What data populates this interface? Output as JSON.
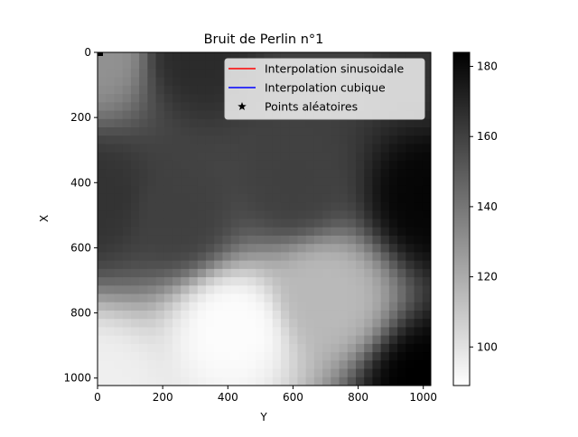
{
  "chart_data": {
    "type": "heatmap",
    "title": "Bruit de Perlin n°1",
    "xlabel": "Y",
    "ylabel": "X",
    "x_ticks": [
      0,
      200,
      400,
      600,
      800,
      1000
    ],
    "y_ticks": [
      0,
      200,
      400,
      600,
      800,
      1000
    ],
    "xlim": [
      0,
      1023
    ],
    "ylim": [
      1023,
      0
    ],
    "colormap": "gray_r",
    "colorbar": {
      "range": [
        89,
        184
      ],
      "ticks": [
        100,
        120,
        140,
        160,
        180
      ]
    },
    "approx_values": [
      {
        "x": 0,
        "y": 0,
        "value": 130
      },
      {
        "x": 300,
        "y": 0,
        "value": 168
      },
      {
        "x": 700,
        "y": 0,
        "value": 160
      },
      {
        "x": 1023,
        "y": 0,
        "value": 165
      },
      {
        "x": 0,
        "y": 450,
        "value": 165
      },
      {
        "x": 250,
        "y": 500,
        "value": 160
      },
      {
        "x": 600,
        "y": 400,
        "value": 160
      },
      {
        "x": 1023,
        "y": 450,
        "value": 182
      },
      {
        "x": 0,
        "y": 1023,
        "value": 95
      },
      {
        "x": 420,
        "y": 850,
        "value": 90
      },
      {
        "x": 700,
        "y": 750,
        "value": 115
      },
      {
        "x": 1023,
        "y": 1023,
        "value": 184
      }
    ],
    "legend": {
      "position": "upper right",
      "entries": [
        {
          "label": "Interpolation sinusoidale",
          "color": "#ff0000",
          "marker": "line"
        },
        {
          "label": "Interpolation cubique",
          "color": "#0000ff",
          "marker": "line"
        },
        {
          "label": "Points aléatoires",
          "color": "#000000",
          "marker": "star"
        }
      ]
    }
  }
}
